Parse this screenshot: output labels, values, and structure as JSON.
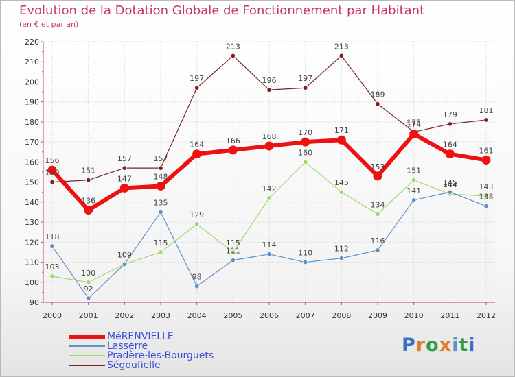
{
  "chart_data": {
    "type": "line",
    "title": "Evolution de la Dotation Globale de Fonctionnement par Habitant",
    "subtitle": "(en € et par an)",
    "x": [
      "2000",
      "2001",
      "2002",
      "2003",
      "2004",
      "2005",
      "2006",
      "2007",
      "2008",
      "2009",
      "2010",
      "2011",
      "2012"
    ],
    "ylim": [
      90,
      220
    ],
    "yticks": [
      90,
      100,
      110,
      120,
      130,
      140,
      150,
      160,
      170,
      180,
      190,
      200,
      210,
      220
    ],
    "grid": true,
    "legend_position": "bottom-left",
    "series": [
      {
        "name": "MéRENVIELLE",
        "color": "#ee1111",
        "values": [
          156,
          136,
          147,
          148,
          164,
          166,
          168,
          170,
          171,
          153,
          174,
          164,
          161
        ]
      },
      {
        "name": "Lasserre",
        "color": "#5b92c7",
        "values": [
          118,
          92,
          109,
          135,
          98,
          111,
          114,
          110,
          112,
          116,
          141,
          145,
          138
        ]
      },
      {
        "name": "Pradère-les-Bourguets",
        "color": "#9fd96b",
        "values": [
          103,
          100,
          109,
          115,
          129,
          115,
          142,
          160,
          145,
          134,
          151,
          144,
          143
        ]
      },
      {
        "name": "Ségoufielle",
        "color": "#7a2424",
        "values": [
          150,
          151,
          157,
          157,
          197,
          213,
          196,
          197,
          213,
          189,
          175,
          179,
          181
        ]
      }
    ]
  },
  "logo": {
    "text": "Proxiti",
    "colors": [
      "#3a6fc4",
      "#e0782e",
      "#2f9e45",
      "#e0782e",
      "#5b92c7",
      "#2f9e45",
      "#3a6fc4"
    ]
  }
}
